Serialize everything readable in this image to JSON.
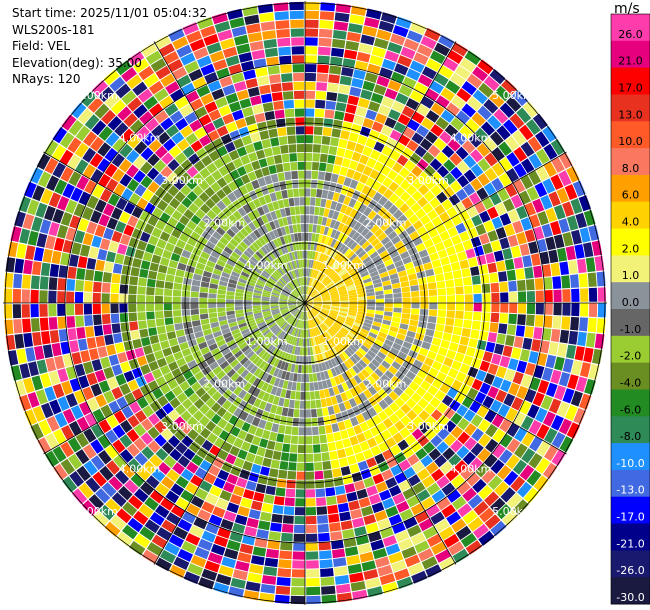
{
  "header": {
    "start_time": "Start time: 2025/11/01 05:04:32",
    "instrument": "WLS200s-181",
    "field": "Field: VEL",
    "elevation": "Elevation(deg): 35.00",
    "nrays": "NRays: 120"
  },
  "colorbar": {
    "unit": "m/s",
    "levels": [
      {
        "label": "26.0",
        "color": "#ff3cac"
      },
      {
        "label": "21.0",
        "color": "#e6007e"
      },
      {
        "label": "17.0",
        "color": "#ff0000"
      },
      {
        "label": "13.0",
        "color": "#e8311f"
      },
      {
        "label": "10.0",
        "color": "#ff5a28"
      },
      {
        "label": "8.0",
        "color": "#fa7860"
      },
      {
        "label": "6.0",
        "color": "#ffa000"
      },
      {
        "label": "4.0",
        "color": "#ffd200"
      },
      {
        "label": "2.0",
        "color": "#ffff00"
      },
      {
        "label": "1.0",
        "color": "#f2f279"
      },
      {
        "label": "0.0",
        "color": "#8a929a"
      },
      {
        "label": "-1.0",
        "color": "#666666"
      },
      {
        "label": "-2.0",
        "color": "#9acd32"
      },
      {
        "label": "-4.0",
        "color": "#6b8e23"
      },
      {
        "label": "-6.0",
        "color": "#228b22"
      },
      {
        "label": "-8.0",
        "color": "#2e8b57"
      },
      {
        "label": "-10.0",
        "color": "#1e90ff"
      },
      {
        "label": "-13.0",
        "color": "#4169e1"
      },
      {
        "label": "-17.0",
        "color": "#0000ff"
      },
      {
        "label": "-21.0",
        "color": "#00008b"
      },
      {
        "label": "-26.0",
        "color": "#191970"
      },
      {
        "label": "-30.0",
        "color": "#1a1a40"
      }
    ]
  },
  "chart_data": {
    "type": "heatmap",
    "projection": "polar-ppi",
    "range_labels": [
      "1.00km",
      "2.00km",
      "3.00km",
      "4.00km",
      "5.00km"
    ],
    "rays": 120,
    "max_range_km": 5.0,
    "elevation_deg": 35.0,
    "field": "VEL"
  }
}
